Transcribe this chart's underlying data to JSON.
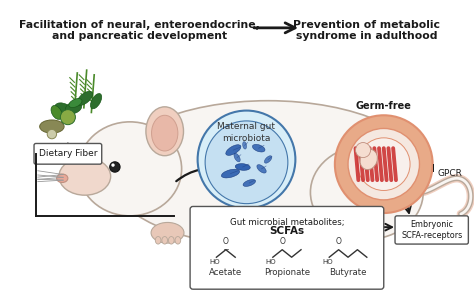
{
  "top_left_line1": "Facilitation of neural, enteroendocrine,",
  "top_left_line2": "and pancreatic development",
  "top_right_line1": "Prevention of metabolic",
  "top_right_line2": "syndrome in adulthood",
  "label_dietary_fiber": "Dietary Fiber",
  "label_maternal_gut": "Maternal gut\nmicrobiota",
  "label_germ_free": "Germ-free",
  "label_gpcr": "GPCR",
  "label_embryonic": "Embryonic\nSCFA-receptors",
  "label_scfas_line1": "Gut microbial metabolites;",
  "label_scfas_line2": "SCFAs",
  "label_acetate": "Acetate",
  "label_propionate": "Propionate",
  "label_butyrate": "Butyrate",
  "bg_color": "#ffffff",
  "mouse_body_color": "#f2ebe6",
  "mouse_outline_color": "#b8a89a",
  "mouse_white_color": "#f8f5f2",
  "ear_color": "#f0cfc0",
  "ear_inner_color": "#e8b8a8",
  "snout_color": "#f0d8cc",
  "paw_color": "#e8c8b8",
  "gut_fill": "#d8eef8",
  "gut_edge": "#4477aa",
  "bacteria_color": "#2255aa",
  "embryo_outer": "#e8aa88",
  "embryo_ring": "#e09070",
  "embryo_red": "#cc3333",
  "embryo_cream": "#f5e8e0",
  "arrow_color": "#1a1a1a",
  "text_color": "#1a1a1a",
  "box_edge": "#555555",
  "green_dark": "#2d6e2d",
  "green_mid": "#4a8a2a",
  "green_light": "#6aaa3a"
}
